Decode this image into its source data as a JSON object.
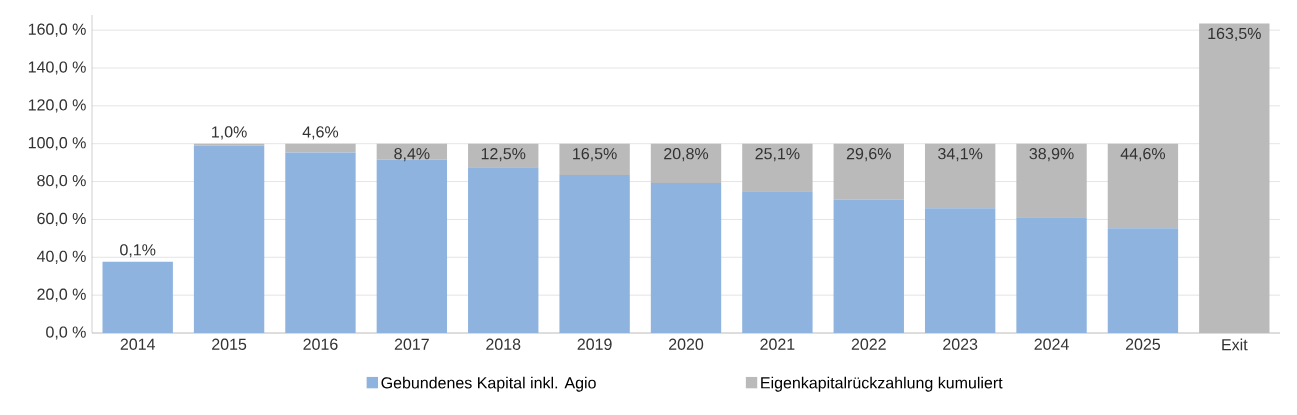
{
  "chart_data": {
    "type": "bar",
    "stacked": true,
    "categories": [
      "2014",
      "2015",
      "2016",
      "2017",
      "2018",
      "2019",
      "2020",
      "2021",
      "2022",
      "2023",
      "2024",
      "2025",
      "Exit"
    ],
    "series": [
      {
        "name": "Gebundenes Kapital inkl. Agio",
        "color": "#8db3de",
        "values": [
          37.6,
          99.0,
          95.4,
          91.6,
          87.5,
          83.5,
          79.2,
          74.9,
          70.4,
          65.9,
          61.1,
          55.4,
          0
        ]
      },
      {
        "name": "Eigenkapitalrückzahlung kumuliert",
        "color": "#bababa",
        "values": [
          0.1,
          1.0,
          4.6,
          8.4,
          12.5,
          16.5,
          20.8,
          25.1,
          29.6,
          34.1,
          38.9,
          44.6,
          163.5
        ],
        "value_labels": [
          "0,1%",
          "1,0%",
          "4,6%",
          "8,4%",
          "12,5%",
          "16,5%",
          "20,8%",
          "25,1%",
          "29,6%",
          "34,1%",
          "38,9%",
          "44,6%",
          "163,5%"
        ]
      }
    ],
    "ylim": [
      0,
      168
    ],
    "yticks": [
      {
        "value": 0,
        "label": "0,0 %"
      },
      {
        "value": 20,
        "label": "20,0 %"
      },
      {
        "value": 40,
        "label": "40,0 %"
      },
      {
        "value": 60,
        "label": "60,0 %"
      },
      {
        "value": 80,
        "label": "80,0 %"
      },
      {
        "value": 100,
        "label": "100,0 %"
      },
      {
        "value": 120,
        "label": "120,0 %"
      },
      {
        "value": 140,
        "label": "140,0 %"
      },
      {
        "value": 160,
        "label": "160,0 %"
      }
    ],
    "grid": "y",
    "legend": "bottom"
  }
}
